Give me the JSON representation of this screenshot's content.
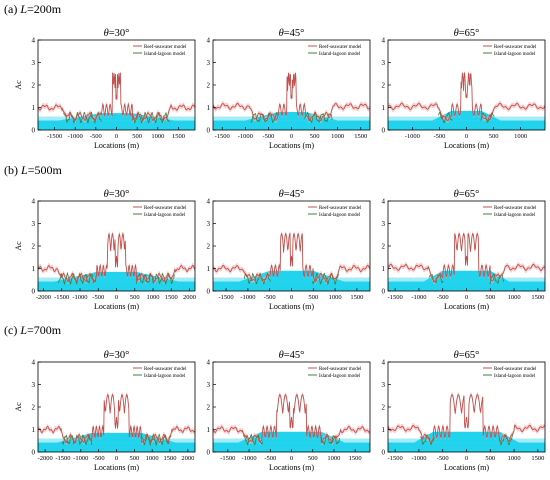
{
  "colors": {
    "reef": "#c0504d",
    "lagoon": "#3f7f3f",
    "reef_band": "#f4b6b6",
    "water": "#22d3ee",
    "water_light": "#a5ecf7",
    "axis": "#000000"
  },
  "rows": [
    {
      "label_prefix": "(a) ",
      "label_var": "L",
      "label_value": "=200m"
    },
    {
      "label_prefix": "(b) ",
      "label_var": "L",
      "label_value": "=500m"
    },
    {
      "label_prefix": "(c) ",
      "label_var": "L",
      "label_value": "=700m"
    }
  ],
  "chart_data": [
    {
      "type": "line",
      "row": 0,
      "col": 0,
      "title": "θ=30°",
      "xlabel": "Locations (m)",
      "ylabel": "Ac",
      "xlim": [
        -1900,
        1900
      ],
      "ylim": [
        0,
        4
      ],
      "xticks": [
        -1500,
        -1000,
        -500,
        0,
        500,
        1000,
        1500
      ],
      "yticks": [
        0,
        1,
        2,
        3,
        4
      ],
      "legend": [
        "Reef-seawater model",
        "Island-lagoon model"
      ],
      "legend_position": "top-right",
      "L": 200,
      "reef_edge": 1250,
      "platform_top": 380,
      "platform_h": 0.75,
      "peak": 2.6,
      "flat": 1.0
    },
    {
      "type": "line",
      "row": 0,
      "col": 1,
      "title": "θ=45°",
      "xlabel": "Locations (m)",
      "xlim": [
        -1700,
        1700
      ],
      "ylim": [
        0,
        4
      ],
      "xticks": [
        -1500,
        -1000,
        -500,
        0,
        500,
        1000,
        1500
      ],
      "yticks": [
        0,
        1,
        2,
        3,
        4
      ],
      "legend": [
        "Reef-seawater model",
        "Island-lagoon model"
      ],
      "legend_position": "top-right",
      "L": 200,
      "reef_edge": 850,
      "platform_top": 300,
      "platform_h": 0.8,
      "peak": 2.6,
      "flat": 1.05
    },
    {
      "type": "line",
      "row": 0,
      "col": 2,
      "title": "θ=65°",
      "xlabel": "Locations (m)",
      "xlim": [
        -1450,
        1450
      ],
      "ylim": [
        0,
        4
      ],
      "xticks": [
        -1000,
        -500,
        0,
        500,
        1000
      ],
      "yticks": [
        0,
        1,
        2,
        3,
        4
      ],
      "legend": [
        "Reef-seawater model",
        "Island-lagoon model"
      ],
      "legend_position": "top-right",
      "L": 200,
      "reef_edge": 480,
      "platform_top": 280,
      "platform_h": 0.85,
      "peak": 3.1,
      "flat": 1.05
    },
    {
      "type": "line",
      "row": 1,
      "col": 0,
      "title": "θ=30°",
      "xlabel": "Locations (m)",
      "ylabel": "Ac",
      "xlim": [
        -2150,
        2150
      ],
      "ylim": [
        0,
        4
      ],
      "xticks": [
        -2000,
        -1500,
        -1000,
        -500,
        0,
        500,
        1000,
        1500,
        2000
      ],
      "yticks": [
        0,
        1,
        2,
        3,
        4
      ],
      "legend": [
        "Reef-seawater model",
        "Island-lagoon model"
      ],
      "legend_position": "top-right",
      "L": 500,
      "reef_edge": 1550,
      "platform_top": 550,
      "platform_h": 0.85,
      "peak": 2.7,
      "flat": 1.0
    },
    {
      "type": "line",
      "row": 1,
      "col": 1,
      "title": "θ=45°",
      "xlabel": "Locations (m)",
      "xlim": [
        -1800,
        1800
      ],
      "ylim": [
        0,
        4
      ],
      "xticks": [
        -1500,
        -1000,
        -500,
        0,
        500,
        1000,
        1500
      ],
      "yticks": [
        0,
        1,
        2,
        3,
        4
      ],
      "legend": [
        "Reef-seawater model",
        "Island-lagoon model"
      ],
      "legend_position": "top-right",
      "L": 500,
      "reef_edge": 1050,
      "platform_top": 500,
      "platform_h": 0.9,
      "peak": 2.7,
      "flat": 1.0
    },
    {
      "type": "line",
      "row": 1,
      "col": 2,
      "title": "θ=65°",
      "xlabel": "Locations (m)",
      "xlim": [
        -1650,
        1650
      ],
      "ylim": [
        0,
        4
      ],
      "xticks": [
        -1500,
        -1000,
        -500,
        0,
        500,
        1000,
        1500
      ],
      "yticks": [
        0,
        1,
        2,
        3,
        4
      ],
      "legend": [
        "Reef-seawater model",
        "Island-lagoon model"
      ],
      "legend_position": "top-right",
      "L": 500,
      "reef_edge": 750,
      "platform_top": 500,
      "platform_h": 0.9,
      "peak": 3.0,
      "flat": 1.05
    },
    {
      "type": "line",
      "row": 2,
      "col": 0,
      "title": "θ=30°",
      "xlabel": "Locations (m)",
      "ylabel": "Ac",
      "xlim": [
        -2200,
        2200
      ],
      "ylim": [
        0,
        4
      ],
      "xticks": [
        -2000,
        -1500,
        -1000,
        -500,
        0,
        500,
        1000,
        1500,
        2000
      ],
      "yticks": [
        0,
        1,
        2,
        3,
        4
      ],
      "legend": [
        "Reef-seawater model",
        "Island-lagoon model"
      ],
      "legend_position": "top-right",
      "L": 700,
      "reef_edge": 1500,
      "platform_top": 700,
      "platform_h": 0.85,
      "peak": 2.5,
      "flat": 1.0
    },
    {
      "type": "line",
      "row": 2,
      "col": 1,
      "title": "θ=45°",
      "xlabel": "Locations (m)",
      "xlim": [
        -1850,
        1850
      ],
      "ylim": [
        0,
        4
      ],
      "xticks": [
        -1500,
        -1000,
        -500,
        0,
        500,
        1000,
        1500
      ],
      "yticks": [
        0,
        1,
        2,
        3,
        4
      ],
      "legend": [
        "Reef-seawater model",
        "Island-lagoon model"
      ],
      "legend_position": "top-right",
      "L": 700,
      "reef_edge": 1100,
      "platform_top": 700,
      "platform_h": 0.9,
      "peak": 2.6,
      "flat": 1.0
    },
    {
      "type": "line",
      "row": 2,
      "col": 2,
      "title": "θ=65°",
      "xlabel": "Locations (m)",
      "xlim": [
        -1650,
        1650
      ],
      "ylim": [
        0,
        4
      ],
      "xticks": [
        -1500,
        -1000,
        -500,
        0,
        500,
        1000,
        1500
      ],
      "yticks": [
        0,
        1,
        2,
        3,
        4
      ],
      "legend": [
        "Reef-seawater model",
        "Island-lagoon model"
      ],
      "legend_position": "top-right",
      "L": 700,
      "reef_edge": 950,
      "platform_top": 700,
      "platform_h": 0.9,
      "peak": 3.0,
      "flat": 1.05
    }
  ]
}
